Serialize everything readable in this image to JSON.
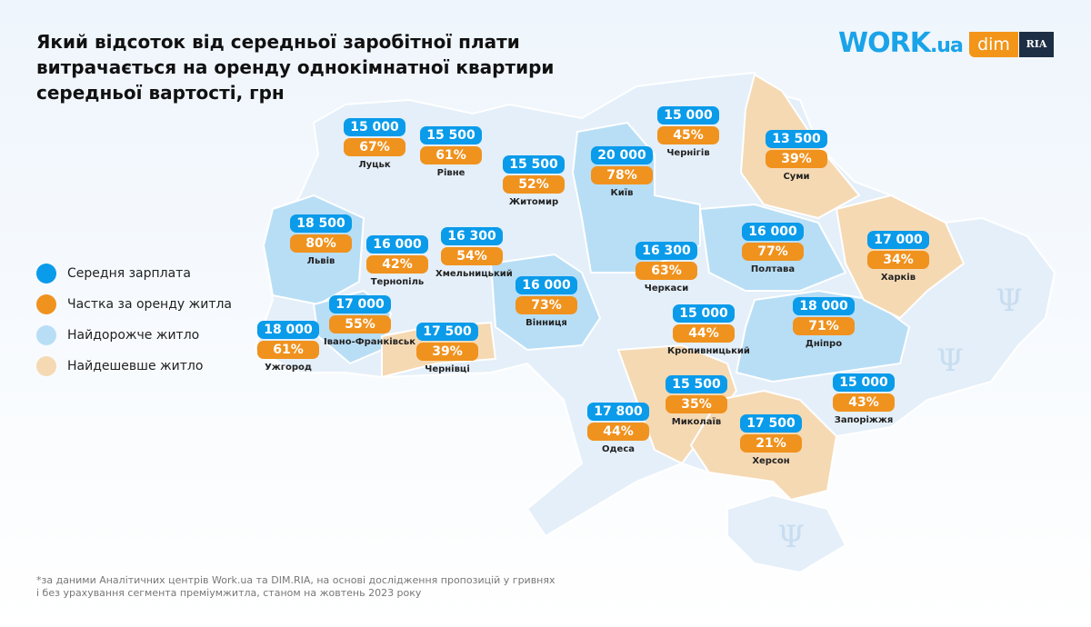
{
  "title": "Який відсоток від середньої заробітної плати витрачається на оренду однокімнатної квартири середньої вартості, грн",
  "logos": {
    "work": "WORK",
    "work_suffix": ".ua",
    "dim": "dim",
    "ria": "RIA"
  },
  "legend": [
    {
      "label": "Середня зарплата",
      "color": "#0a9bea"
    },
    {
      "label": "Частка за оренду житла",
      "color": "#f0921e"
    },
    {
      "label": "Найдорожче житло",
      "color": "#b8def6"
    },
    {
      "label": "Найдешевше житло",
      "color": "#f5d9b3"
    }
  ],
  "cities": [
    {
      "name": "Луцьк",
      "salary": "15 000",
      "share": "67%"
    },
    {
      "name": "Рівне",
      "salary": "15 500",
      "share": "61%"
    },
    {
      "name": "Житомир",
      "salary": "15 500",
      "share": "52%"
    },
    {
      "name": "Київ",
      "salary": "20 000",
      "share": "78%"
    },
    {
      "name": "Чернігів",
      "salary": "15 000",
      "share": "45%"
    },
    {
      "name": "Суми",
      "salary": "13 500",
      "share": "39%"
    },
    {
      "name": "Львів",
      "salary": "18 500",
      "share": "80%"
    },
    {
      "name": "Тернопіль",
      "salary": "16 000",
      "share": "42%"
    },
    {
      "name": "Хмельницький",
      "salary": "16 300",
      "share": "54%"
    },
    {
      "name": "Вінниця",
      "salary": "16 000",
      "share": "73%"
    },
    {
      "name": "Черкаси",
      "salary": "16 300",
      "share": "63%"
    },
    {
      "name": "Полтава",
      "salary": "16 000",
      "share": "77%"
    },
    {
      "name": "Харків",
      "salary": "17 000",
      "share": "34%"
    },
    {
      "name": "Ужгород",
      "salary": "18 000",
      "share": "61%"
    },
    {
      "name": "Івано-Франківськ",
      "salary": "17 000",
      "share": "55%"
    },
    {
      "name": "Чернівці",
      "salary": "17 500",
      "share": "39%"
    },
    {
      "name": "Кропивницький",
      "salary": "15 000",
      "share": "44%"
    },
    {
      "name": "Дніпро",
      "salary": "18 000",
      "share": "71%"
    },
    {
      "name": "Запоріжжя",
      "salary": "15 000",
      "share": "43%"
    },
    {
      "name": "Миколаїв",
      "salary": "15 500",
      "share": "35%"
    },
    {
      "name": "Одеса",
      "salary": "17 800",
      "share": "44%"
    },
    {
      "name": "Херсон",
      "salary": "17 500",
      "share": "21%"
    }
  ],
  "footnote": [
    "*за даними Аналітичних центрів Work.ua та DIM.RIA, на основі дослідження пропозицій у гривнях",
    "і без урахування сегмента преміумжитла, станом на жовтень 2023 року"
  ]
}
